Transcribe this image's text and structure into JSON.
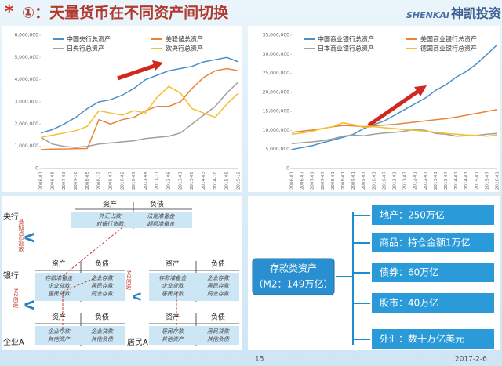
{
  "header": {
    "marker": "*",
    "title": "①：天量货币在不同资产间切换",
    "logo_en": "SHENKAI",
    "logo_cn": "神凯投资"
  },
  "chart_data": [
    {
      "type": "line",
      "legend": "top",
      "categories": [
        "2006-01",
        "2006-08",
        "2007-03",
        "2007-10",
        "2008-05",
        "2008-12",
        "2009-07",
        "2010-02",
        "2010-09",
        "2011-04",
        "2011-11",
        "2012-06",
        "2013-01",
        "2013-08",
        "2014-03",
        "2014-10",
        "2015-05",
        "2015-12"
      ],
      "series": [
        {
          "name": "中国央行总资产",
          "color": "#4a90c8",
          "values": [
            1600000,
            1750000,
            2000000,
            2300000,
            2700000,
            3000000,
            3100000,
            3300000,
            3600000,
            4000000,
            4200000,
            4400000,
            4500000,
            4600000,
            4800000,
            4900000,
            5000000,
            4800000
          ]
        },
        {
          "name": "美联储总资产",
          "color": "#e8833a",
          "values": [
            850000,
            870000,
            880000,
            890000,
            900000,
            2200000,
            2000000,
            2200000,
            2300000,
            2600000,
            2800000,
            2800000,
            3000000,
            3600000,
            4100000,
            4400000,
            4500000,
            4400000
          ]
        },
        {
          "name": "日央行总资产",
          "color": "#a0a0a0",
          "values": [
            1400000,
            1100000,
            1000000,
            950000,
            1000000,
            1100000,
            1150000,
            1200000,
            1250000,
            1350000,
            1400000,
            1450000,
            1600000,
            2000000,
            2400000,
            2800000,
            3400000,
            3900000
          ]
        },
        {
          "name": "欧央行总资产",
          "color": "#f2c12e",
          "values": [
            1400000,
            1500000,
            1600000,
            1700000,
            1900000,
            2600000,
            2500000,
            2400000,
            2600000,
            2500000,
            3200000,
            3700000,
            3400000,
            2700000,
            2500000,
            2300000,
            2900000,
            3400000
          ]
        }
      ],
      "ylim": [
        0,
        6000000
      ],
      "yticks": [
        0,
        {
          "value": 1000000,
          "label": "1,000,000"
        },
        {
          "value": 2000000,
          "label": "2,000,000"
        },
        {
          "value": 3000000,
          "label": "3,000,000"
        },
        {
          "value": 4000000,
          "label": "4,000,000"
        },
        {
          "value": 5000000,
          "label": "5,000,000"
        },
        {
          "value": 6000000,
          "label": "6,000,000"
        }
      ],
      "grid": false
    },
    {
      "type": "line",
      "legend": "top",
      "categories": [
        "2006-01",
        "2006-07",
        "2007-01",
        "2007-07",
        "2008-01",
        "2008-07",
        "2009-01",
        "2009-07",
        "2010-01",
        "2010-07",
        "2011-01",
        "2011-07",
        "2012-01",
        "2012-07",
        "2013-01",
        "2013-07",
        "2014-01",
        "2014-07",
        "2015-01",
        "2015-07",
        "2016-01"
      ],
      "series": [
        {
          "name": "中国商业银行总资产",
          "color": "#4a90c8",
          "values": [
            5000000,
            5500000,
            6000000,
            6800000,
            7500000,
            8200000,
            9000000,
            10500000,
            11500000,
            12500000,
            14000000,
            15500000,
            17000000,
            18500000,
            20500000,
            22000000,
            24000000,
            25500000,
            27500000,
            30000000,
            32500000
          ]
        },
        {
          "name": "美国商业银行总资产",
          "color": "#e8833a",
          "values": [
            9500000,
            9800000,
            10100000,
            10500000,
            11000000,
            11300000,
            11200000,
            11000000,
            11200000,
            11400000,
            11600000,
            11900000,
            12200000,
            12500000,
            12800000,
            13100000,
            13500000,
            14000000,
            14500000,
            15000000,
            15500000
          ]
        },
        {
          "name": "日本商业银行总资产",
          "color": "#a0a0a0",
          "values": [
            6500000,
            6800000,
            7000000,
            7300000,
            7800000,
            8500000,
            8800000,
            8600000,
            9000000,
            9300000,
            9500000,
            9800000,
            10300000,
            10000000,
            9200000,
            9000000,
            8500000,
            8600000,
            8700000,
            9000000,
            9200000
          ]
        },
        {
          "name": "德国商业银行总资产",
          "color": "#f2c12e",
          "values": [
            9000000,
            9300000,
            9800000,
            10500000,
            11000000,
            12000000,
            11500000,
            10800000,
            11000000,
            10700000,
            10500000,
            10200000,
            10000000,
            9800000,
            9500000,
            9200000,
            9000000,
            8800000,
            8700000,
            8500000,
            8800000
          ]
        }
      ],
      "ylim": [
        0,
        35000000
      ],
      "yticks": [
        0,
        {
          "value": 5000000,
          "label": "5,000,000"
        },
        {
          "value": 10000000,
          "label": "10,000,000"
        },
        {
          "value": 15000000,
          "label": "15,000,000"
        },
        {
          "value": 20000000,
          "label": "20,000,000"
        },
        {
          "value": 25000000,
          "label": "25,000,000"
        },
        {
          "value": 30000000,
          "label": "30,000,000"
        },
        {
          "value": 35000000,
          "label": "35,000,000"
        }
      ],
      "grid": false
    }
  ],
  "diagram": {
    "central_bank": {
      "label": "央行",
      "assets_header": "资产",
      "liabilities_header": "负债",
      "assets": [
        "外汇占款",
        "对银行贷款"
      ],
      "liabilities": [
        "法定准备金",
        "超额准备金"
      ]
    },
    "base_money_label": "基础货币投放",
    "bank_label": "银行",
    "bank_1": {
      "assets_header": "资产",
      "liabilities_header": "负债",
      "assets": [
        "存款准备金",
        "企业贷款",
        "居民贷款"
      ],
      "liabilities": [
        "企业存款",
        "居民存款",
        "同业存款"
      ]
    },
    "bank_2": {
      "assets_header": "资产",
      "liabilities_header": "负债",
      "assets": [
        "存款准备金",
        "企业贷款",
        "居民贷款"
      ],
      "liabilities": [
        "企业存款",
        "居民存款",
        "同业存款"
      ]
    },
    "m2_label_1": "M2创造",
    "m2_label_2": "M2创造",
    "firm": {
      "label": "企业A",
      "assets_header": "资产",
      "liabilities_header": "负债",
      "assets": [
        "企业存款",
        "其他资产"
      ],
      "liabilities": [
        "企业贷款",
        "其他负债"
      ]
    },
    "household": {
      "label": "居民A",
      "assets_header": "资产",
      "liabilities_header": "负债",
      "assets": [
        "居民存款",
        "其他资产"
      ],
      "liabilities": [
        "居民贷款",
        "其他负债"
      ]
    }
  },
  "assets_panel": {
    "source_title": "存款类资产",
    "source_sub": "（M2：149万亿）",
    "items": [
      "地产：250万亿",
      "商品：持仓金额1万亿",
      "债券：60万亿",
      "股市：40万亿",
      "外汇：数十万亿美元"
    ]
  },
  "footer": {
    "page": "15",
    "date": "2017-2-6"
  }
}
